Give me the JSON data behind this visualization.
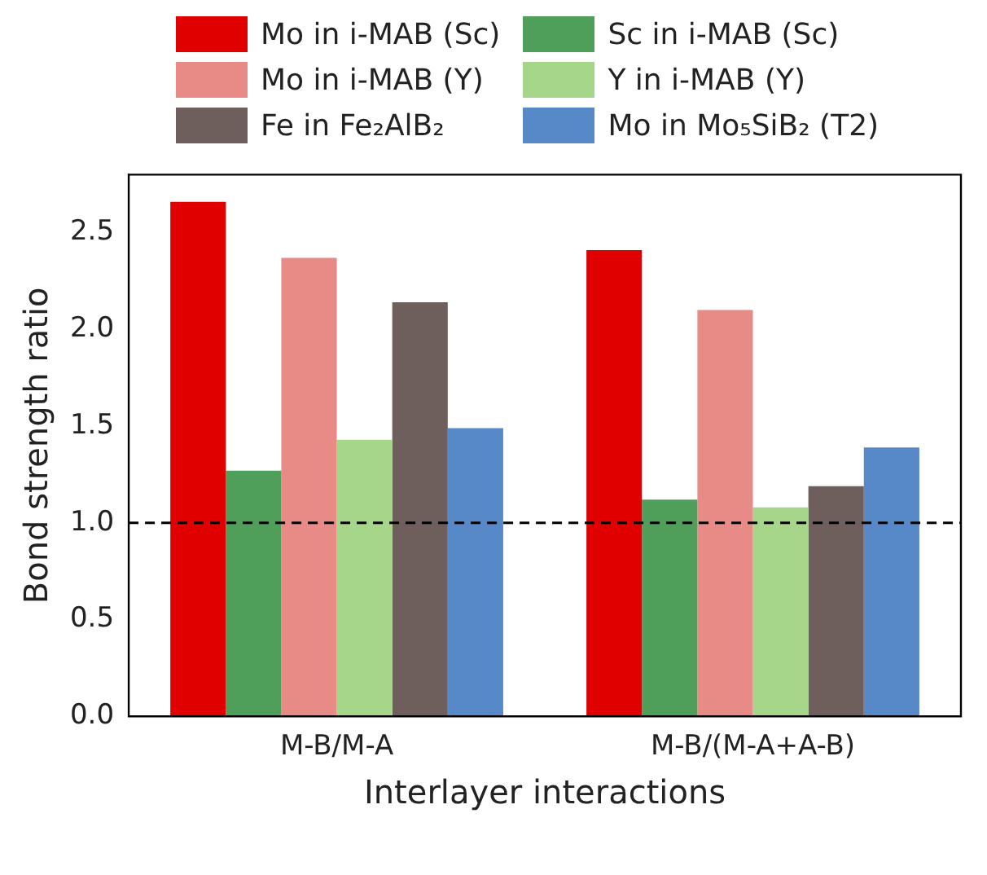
{
  "chart_data": {
    "type": "bar",
    "xlabel": "Interlayer interactions",
    "ylabel": "Bond strength ratio",
    "categories": [
      "M-B/M-A",
      "M-B/(M-A+A-B)"
    ],
    "series": [
      {
        "name": "Mo in i-MAB (Sc)",
        "color": "#e00000",
        "values": [
          2.66,
          2.41
        ]
      },
      {
        "name": "Sc in i-MAB (Sc)",
        "color": "#4f9e5a",
        "values": [
          1.27,
          1.12
        ]
      },
      {
        "name": "Mo in i-MAB (Y)",
        "color": "#e88b86",
        "values": [
          2.37,
          2.1
        ]
      },
      {
        "name": "Y in i-MAB (Y)",
        "color": "#a6d68a",
        "values": [
          1.43,
          1.08
        ]
      },
      {
        "name": "Fe in Fe₂AlB₂",
        "color": "#6e5f5d",
        "values": [
          2.14,
          1.19
        ]
      },
      {
        "name": "Mo in Mo₅SiB₂ (T2)",
        "color": "#5789c9",
        "values": [
          1.49,
          1.39
        ]
      }
    ],
    "ylim": [
      0,
      2.8
    ],
    "yticks": [
      {
        "value": 0,
        "label": "0.0"
      },
      0.5,
      {
        "value": 1,
        "label": "1.0"
      },
      1.5,
      {
        "value": 2,
        "label": "2.0"
      },
      2.5
    ],
    "grid": false,
    "legend": "top",
    "ref_lines": [
      {
        "axis": "y",
        "value": 1,
        "color": "#000000",
        "line_style": "dashed"
      }
    ]
  }
}
